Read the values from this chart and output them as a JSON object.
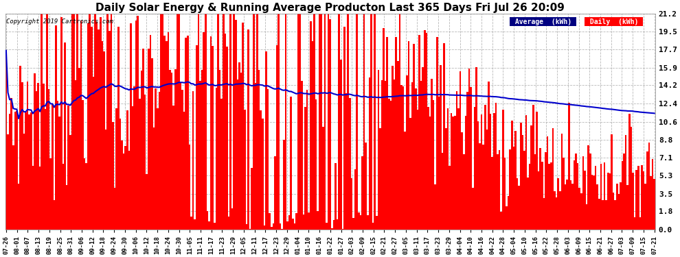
{
  "title": "Daily Solar Energy & Running Average Producton Last 365 Days Fri Jul 26 20:09",
  "copyright": "Copyright 2019 Cartronics.com",
  "yticks": [
    0.0,
    1.8,
    3.5,
    5.3,
    7.1,
    8.8,
    10.6,
    12.4,
    14.2,
    15.9,
    17.7,
    19.5,
    21.2
  ],
  "ymax": 21.2,
  "bg_color": "#ffffff",
  "bar_color": "#ff0000",
  "avg_color": "#0000cc",
  "grid_color": "#999999",
  "title_fontsize": 11,
  "legend_avg_label": "Average (kWh)",
  "legend_daily_label": "Daily (kWh)",
  "xtick_labels": [
    "07-26",
    "08-01",
    "08-07",
    "08-13",
    "08-19",
    "08-25",
    "08-31",
    "09-06",
    "09-12",
    "09-18",
    "09-24",
    "09-30",
    "10-06",
    "10-12",
    "10-18",
    "10-24",
    "10-30",
    "11-05",
    "11-11",
    "11-17",
    "11-23",
    "11-29",
    "12-05",
    "12-11",
    "12-17",
    "12-23",
    "12-29",
    "01-04",
    "01-10",
    "01-16",
    "01-22",
    "01-27",
    "02-03",
    "02-09",
    "02-15",
    "02-21",
    "02-27",
    "03-05",
    "03-11",
    "03-17",
    "03-23",
    "03-29",
    "04-04",
    "04-10",
    "04-16",
    "04-22",
    "04-28",
    "05-04",
    "05-10",
    "05-16",
    "05-22",
    "05-28",
    "06-03",
    "06-09",
    "06-15",
    "06-21",
    "06-27",
    "07-03",
    "07-09",
    "07-15",
    "07-21"
  ]
}
